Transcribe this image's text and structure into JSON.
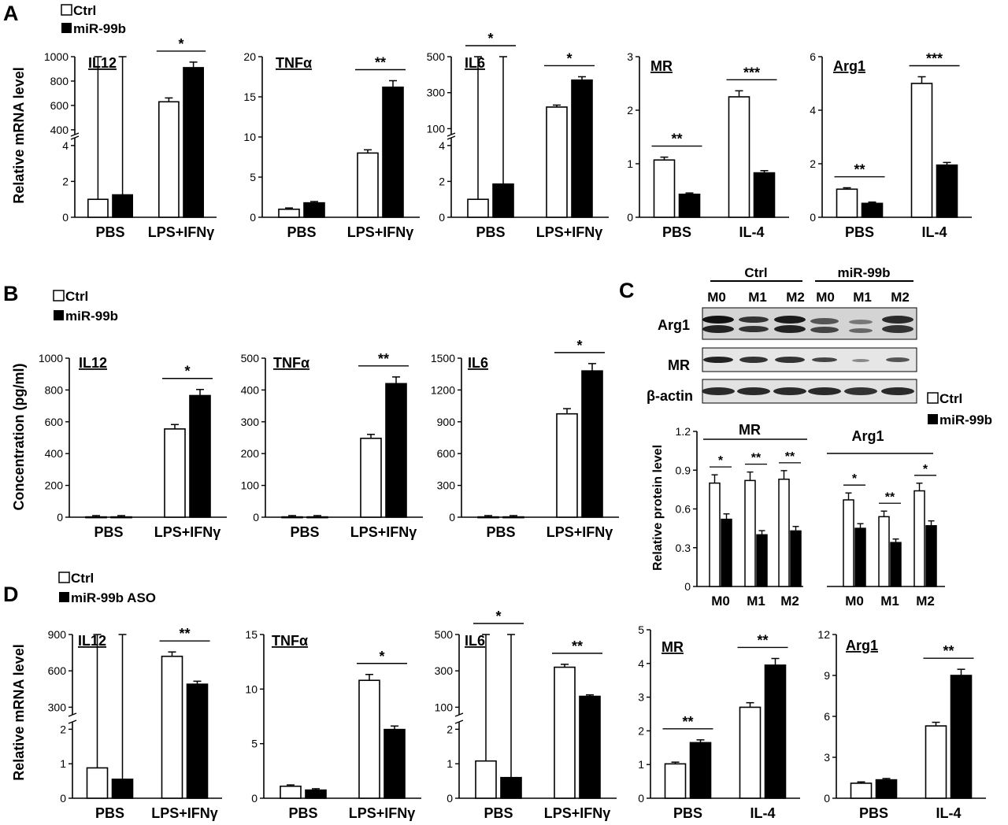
{
  "legend": {
    "ctrl": "Ctrl",
    "mir99b": "miR-99b",
    "mir99b_aso": "miR-99b ASO"
  },
  "panel_labels": {
    "a": "A",
    "b": "B",
    "c": "C",
    "d": "D"
  },
  "y_titles": {
    "mrna": "Relative mRNA level",
    "conc": "Concentration (pg/ml)",
    "protein": "Relative protein level"
  },
  "western": {
    "groups": [
      "Ctrl",
      "miR-99b"
    ],
    "lanes": [
      "M0",
      "M1",
      "M2",
      "M0",
      "M1",
      "M2"
    ],
    "rows": [
      "Arg1",
      "MR",
      "β-actin"
    ]
  },
  "chart_data": [
    {
      "id": "A1",
      "type": "bar",
      "title": "IL12",
      "categories": [
        "PBS",
        "LPS+IFNγ"
      ],
      "ylim": [
        0,
        1000
      ],
      "broken_axis": true,
      "series": [
        {
          "name": "Ctrl",
          "values": [
            1.0,
            630
          ]
        },
        {
          "name": "miR-99b",
          "values": [
            1.25,
            910
          ]
        }
      ],
      "significance": [
        "",
        "*"
      ]
    },
    {
      "id": "A2",
      "type": "bar",
      "title": "TNFα",
      "categories": [
        "PBS",
        "LPS+IFNγ"
      ],
      "ylim": [
        0,
        20
      ],
      "series": [
        {
          "name": "Ctrl",
          "values": [
            1.0,
            8.0
          ]
        },
        {
          "name": "miR-99b",
          "values": [
            1.8,
            16.2
          ]
        }
      ],
      "significance": [
        "",
        "**"
      ]
    },
    {
      "id": "A3",
      "type": "bar",
      "title": "IL6",
      "categories": [
        "PBS",
        "LPS+IFNγ"
      ],
      "ylim": [
        0,
        500
      ],
      "broken_axis": true,
      "series": [
        {
          "name": "Ctrl",
          "values": [
            1.0,
            220
          ]
        },
        {
          "name": "miR-99b",
          "values": [
            1.85,
            370
          ]
        }
      ],
      "significance": [
        "*",
        "*"
      ]
    },
    {
      "id": "A4",
      "type": "bar",
      "title": "MR",
      "categories": [
        "PBS",
        "IL-4"
      ],
      "ylim": [
        0,
        3
      ],
      "series": [
        {
          "name": "Ctrl",
          "values": [
            1.07,
            2.25
          ]
        },
        {
          "name": "miR-99b",
          "values": [
            0.43,
            0.83
          ]
        }
      ],
      "significance": [
        "**",
        "***"
      ]
    },
    {
      "id": "A5",
      "type": "bar",
      "title": "Arg1",
      "categories": [
        "PBS",
        "IL-4"
      ],
      "ylim": [
        0,
        6
      ],
      "series": [
        {
          "name": "Ctrl",
          "values": [
            1.05,
            5.0
          ]
        },
        {
          "name": "miR-99b",
          "values": [
            0.52,
            1.95
          ]
        }
      ],
      "significance": [
        "**",
        "***"
      ]
    },
    {
      "id": "B1",
      "type": "bar",
      "title": "IL12",
      "categories": [
        "PBS",
        "LPS+IFNγ"
      ],
      "ylim": [
        0,
        1000
      ],
      "series": [
        {
          "name": "Ctrl",
          "values": [
            2,
            555
          ]
        },
        {
          "name": "miR-99b",
          "values": [
            2,
            765
          ]
        }
      ],
      "significance": [
        "",
        "*"
      ]
    },
    {
      "id": "B2",
      "type": "bar",
      "title": "TNFα",
      "categories": [
        "PBS",
        "LPS+IFNγ"
      ],
      "ylim": [
        0,
        500
      ],
      "series": [
        {
          "name": "Ctrl",
          "values": [
            1,
            248
          ]
        },
        {
          "name": "miR-99b",
          "values": [
            1,
            420
          ]
        }
      ],
      "significance": [
        "",
        "**"
      ]
    },
    {
      "id": "B3",
      "type": "bar",
      "title": "IL6",
      "categories": [
        "PBS",
        "LPS+IFNγ"
      ],
      "ylim": [
        0,
        1500
      ],
      "series": [
        {
          "name": "Ctrl",
          "values": [
            3,
            975
          ]
        },
        {
          "name": "miR-99b",
          "values": [
            3,
            1380
          ]
        }
      ],
      "significance": [
        "",
        "*"
      ]
    },
    {
      "id": "C",
      "type": "bar",
      "title": "",
      "categories": [
        "M0",
        "M1",
        "M2",
        "M0",
        "M1",
        "M2"
      ],
      "groups": [
        "MR",
        "Arg1"
      ],
      "ylim": [
        0,
        1.2
      ],
      "series": [
        {
          "name": "Ctrl",
          "values": [
            0.8,
            0.82,
            0.83,
            0.67,
            0.54,
            0.74
          ]
        },
        {
          "name": "miR-99b",
          "values": [
            0.52,
            0.4,
            0.43,
            0.45,
            0.34,
            0.47
          ]
        }
      ],
      "significance": [
        "*",
        "**",
        "**",
        "*",
        "**",
        "*"
      ]
    },
    {
      "id": "D1",
      "type": "bar",
      "title": "IL12",
      "categories": [
        "PBS",
        "LPS+IFNγ"
      ],
      "ylim": [
        0,
        900
      ],
      "broken_axis": true,
      "series": [
        {
          "name": "Ctrl",
          "values": [
            0.88,
            720
          ]
        },
        {
          "name": "miR-99b ASO",
          "values": [
            0.55,
            490
          ]
        }
      ],
      "significance": [
        "",
        "**"
      ]
    },
    {
      "id": "D2",
      "type": "bar",
      "title": "TNFα",
      "categories": [
        "PBS",
        "LPS+IFNγ"
      ],
      "ylim": [
        0,
        15
      ],
      "series": [
        {
          "name": "Ctrl",
          "values": [
            1.1,
            10.8
          ]
        },
        {
          "name": "miR-99b ASO",
          "values": [
            0.75,
            6.3
          ]
        }
      ],
      "significance": [
        "",
        "*"
      ]
    },
    {
      "id": "D3",
      "type": "bar",
      "title": "IL6",
      "categories": [
        "PBS",
        "LPS+IFNγ"
      ],
      "ylim": [
        0,
        500
      ],
      "broken_axis": true,
      "series": [
        {
          "name": "Ctrl",
          "values": [
            1.08,
            320
          ]
        },
        {
          "name": "miR-99b ASO",
          "values": [
            0.6,
            160
          ]
        }
      ],
      "significance": [
        "*",
        "**"
      ]
    },
    {
      "id": "D4",
      "type": "bar",
      "title": "MR",
      "categories": [
        "PBS",
        "IL-4"
      ],
      "ylim": [
        0,
        5
      ],
      "series": [
        {
          "name": "Ctrl",
          "values": [
            1.02,
            2.7
          ]
        },
        {
          "name": "miR-99b ASO",
          "values": [
            1.65,
            3.95
          ]
        }
      ],
      "significance": [
        "**",
        "**"
      ]
    },
    {
      "id": "D5",
      "type": "bar",
      "title": "Arg1",
      "categories": [
        "PBS",
        "IL-4"
      ],
      "ylim": [
        0,
        12
      ],
      "series": [
        {
          "name": "Ctrl",
          "values": [
            1.1,
            5.3
          ]
        },
        {
          "name": "miR-99b ASO",
          "values": [
            1.35,
            9.0
          ]
        }
      ],
      "significance": [
        "",
        "**"
      ]
    }
  ]
}
